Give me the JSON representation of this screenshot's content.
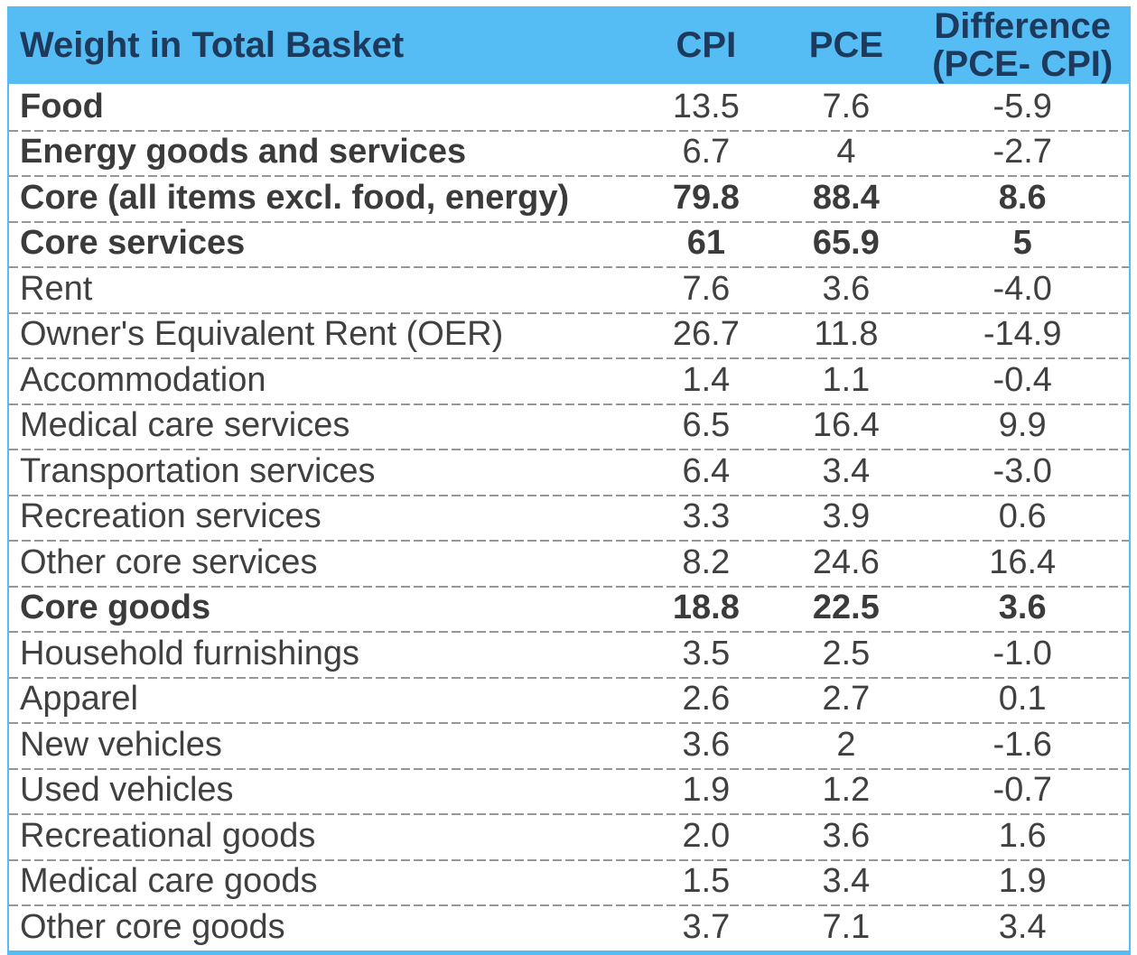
{
  "table": {
    "columns": [
      "Weight in Total Basket",
      "CPI",
      "PCE",
      "Difference\n(PCE- CPI)"
    ],
    "rows": [
      {
        "label": "Food",
        "cpi": "13.5",
        "pce": "7.6",
        "diff": "-5.9",
        "bold_label": true,
        "bold_values": false
      },
      {
        "label": "Energy goods and services",
        "cpi": "6.7",
        "pce": "4",
        "diff": "-2.7",
        "bold_label": true,
        "bold_values": false
      },
      {
        "label": "Core (all items excl. food, energy)",
        "cpi": "79.8",
        "pce": "88.4",
        "diff": "8.6",
        "bold_label": true,
        "bold_values": true
      },
      {
        "label": "Core services",
        "cpi": "61",
        "pce": "65.9",
        "diff": "5",
        "bold_label": true,
        "bold_values": true
      },
      {
        "label": "Rent",
        "cpi": "7.6",
        "pce": "3.6",
        "diff": "-4.0",
        "bold_label": false,
        "bold_values": false
      },
      {
        "label": "Owner's Equivalent Rent (OER)",
        "cpi": "26.7",
        "pce": "11.8",
        "diff": "-14.9",
        "bold_label": false,
        "bold_values": false
      },
      {
        "label": "Accommodation",
        "cpi": "1.4",
        "pce": "1.1",
        "diff": "-0.4",
        "bold_label": false,
        "bold_values": false
      },
      {
        "label": "Medical care services",
        "cpi": "6.5",
        "pce": "16.4",
        "diff": "9.9",
        "bold_label": false,
        "bold_values": false
      },
      {
        "label": "Transportation services",
        "cpi": "6.4",
        "pce": "3.4",
        "diff": "-3.0",
        "bold_label": false,
        "bold_values": false
      },
      {
        "label": "Recreation services",
        "cpi": "3.3",
        "pce": "3.9",
        "diff": "0.6",
        "bold_label": false,
        "bold_values": false
      },
      {
        "label": "Other core services",
        "cpi": "8.2",
        "pce": "24.6",
        "diff": "16.4",
        "bold_label": false,
        "bold_values": false
      },
      {
        "label": "Core goods",
        "cpi": "18.8",
        "pce": "22.5",
        "diff": "3.6",
        "bold_label": true,
        "bold_values": true
      },
      {
        "label": "Household furnishings",
        "cpi": "3.5",
        "pce": "2.5",
        "diff": "-1.0",
        "bold_label": false,
        "bold_values": false
      },
      {
        "label": "Apparel",
        "cpi": "2.6",
        "pce": "2.7",
        "diff": "0.1",
        "bold_label": false,
        "bold_values": false
      },
      {
        "label": "New vehicles",
        "cpi": "3.6",
        "pce": "2",
        "diff": "-1.6",
        "bold_label": false,
        "bold_values": false
      },
      {
        "label": "Used vehicles",
        "cpi": "1.9",
        "pce": "1.2",
        "diff": "-0.7",
        "bold_label": false,
        "bold_values": false
      },
      {
        "label": "Recreational goods",
        "cpi": "2.0",
        "pce": "3.6",
        "diff": "1.6",
        "bold_label": false,
        "bold_values": false
      },
      {
        "label": "Medical care goods",
        "cpi": "1.5",
        "pce": "3.4",
        "diff": "1.9",
        "bold_label": false,
        "bold_values": false
      },
      {
        "label": "Other core goods",
        "cpi": "3.7",
        "pce": "7.1",
        "diff": "3.4",
        "bold_label": false,
        "bold_values": false
      }
    ]
  },
  "colors": {
    "header_bg": "#55bcf4",
    "header_text": "#1d3a5c",
    "body_text": "#404040",
    "outer_border": "#55bcf4",
    "row_divider": "#969696"
  },
  "chart_data": {
    "type": "table",
    "title": "Weight in Total Basket",
    "columns": [
      "Weight in Total Basket",
      "CPI",
      "PCE",
      "Difference (PCE- CPI)"
    ],
    "rows": [
      [
        "Food",
        13.5,
        7.6,
        -5.9
      ],
      [
        "Energy goods and services",
        6.7,
        4,
        -2.7
      ],
      [
        "Core (all items excl. food, energy)",
        79.8,
        88.4,
        8.6
      ],
      [
        "Core services",
        61,
        65.9,
        5
      ],
      [
        "Rent",
        7.6,
        3.6,
        -4.0
      ],
      [
        "Owner's Equivalent Rent (OER)",
        26.7,
        11.8,
        -14.9
      ],
      [
        "Accommodation",
        1.4,
        1.1,
        -0.4
      ],
      [
        "Medical care services",
        6.5,
        16.4,
        9.9
      ],
      [
        "Transportation services",
        6.4,
        3.4,
        -3.0
      ],
      [
        "Recreation services",
        3.3,
        3.9,
        0.6
      ],
      [
        "Other core services",
        8.2,
        24.6,
        16.4
      ],
      [
        "Core goods",
        18.8,
        22.5,
        3.6
      ],
      [
        "Household furnishings",
        3.5,
        2.5,
        -1.0
      ],
      [
        "Apparel",
        2.6,
        2.7,
        0.1
      ],
      [
        "New vehicles",
        3.6,
        2,
        -1.6
      ],
      [
        "Used vehicles",
        1.9,
        1.2,
        -0.7
      ],
      [
        "Recreational goods",
        2.0,
        3.6,
        1.6
      ],
      [
        "Medical care goods",
        1.5,
        3.4,
        1.9
      ],
      [
        "Other core goods",
        3.7,
        7.1,
        3.4
      ]
    ]
  }
}
